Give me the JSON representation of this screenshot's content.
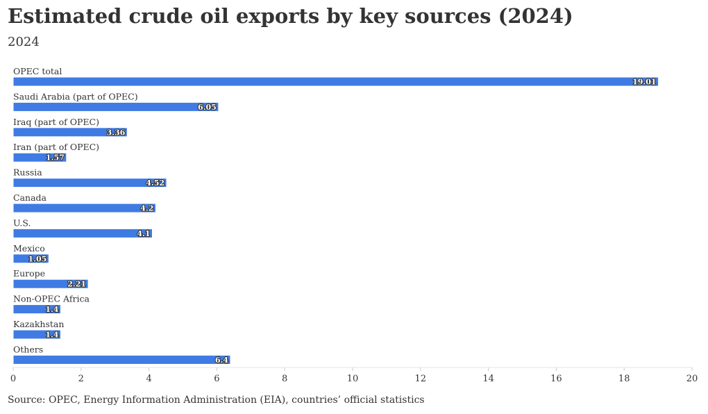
{
  "chart_data": {
    "type": "bar",
    "orientation": "horizontal",
    "title": "Estimated crude oil exports by key sources (2024)",
    "subtitle": "2024",
    "categories": [
      "OPEC total",
      "Saudi Arabia (part of OPEC)",
      "Iraq (part of OPEC)",
      "Iran (part of OPEC)",
      "Russia",
      "Canada",
      "U.S.",
      "Mexico",
      "Europe",
      "Non-OPEC Africa",
      "Kazakhstan",
      "Others"
    ],
    "values": [
      19.01,
      6.05,
      3.36,
      1.57,
      4.52,
      4.2,
      4.1,
      1.05,
      2.21,
      1.4,
      1.4,
      6.4
    ],
    "value_labels": [
      "19.01",
      "6.05",
      "3.36",
      "1.57",
      "4.52",
      "4.2",
      "4.1",
      "1.05",
      "2.21",
      "1.4",
      "1.4",
      "6.4"
    ],
    "xlim": [
      0,
      20
    ],
    "x_ticks": [
      "0",
      "2",
      "4",
      "6",
      "8",
      "10",
      "12",
      "14",
      "16",
      "18",
      "20"
    ],
    "xlabel": "",
    "ylabel": "",
    "grid": false,
    "legend": "none",
    "bar_color": "#3f7be3",
    "source": "Source: OPEC, Energy Information Administration (EIA), countries’ official statistics"
  }
}
